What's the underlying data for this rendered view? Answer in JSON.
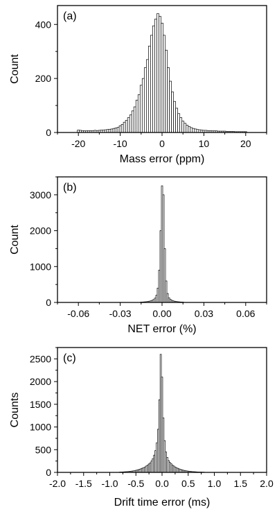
{
  "chart_data": [
    {
      "type": "bar",
      "panel_label": "(a)",
      "xlabel": "Mass error (ppm)",
      "ylabel": "Count",
      "xlim": [
        -25,
        25
      ],
      "ylim": [
        0,
        470
      ],
      "xticks": [
        -20,
        -10,
        0,
        10,
        20
      ],
      "xtick_labels": [
        "-20",
        "-10",
        "0",
        "10",
        "20"
      ],
      "yticks": [
        0,
        200,
        400
      ],
      "ytick_labels": [
        "0",
        "200",
        "400"
      ],
      "bin_width": 0.5,
      "series": [
        {
          "x": [
            -20,
            -19.5,
            -19,
            -18.5,
            -18,
            -17.5,
            -17,
            -16.5,
            -16,
            -15.5,
            -15,
            -14.5,
            -14,
            -13.5,
            -13,
            -12.5,
            -12,
            -11.5,
            -11,
            -10.5,
            -10,
            -9.5,
            -9,
            -8.5,
            -8,
            -7.5,
            -7,
            -6.5,
            -6,
            -5.5,
            -5,
            -4.5,
            -4,
            -3.5,
            -3,
            -2.5,
            -2,
            -1.5,
            -1,
            -0.5,
            0,
            0.5,
            1,
            1.5,
            2,
            2.5,
            3,
            3.5,
            4,
            4.5,
            5,
            5.5,
            6,
            6.5,
            7,
            7.5,
            8,
            8.5,
            9,
            9.5,
            10,
            10.5,
            11,
            11.5,
            12,
            12.5,
            13,
            13.5,
            14,
            14.5,
            15,
            15.5,
            16,
            16.5,
            17,
            17.5,
            18,
            18.5,
            19,
            19.5,
            20
          ],
          "values": [
            9,
            8,
            7,
            6,
            6,
            7,
            6,
            7,
            8,
            7,
            8,
            9,
            9,
            10,
            11,
            12,
            13,
            15,
            17,
            19,
            25,
            30,
            38,
            45,
            55,
            65,
            80,
            95,
            120,
            140,
            175,
            200,
            240,
            270,
            320,
            360,
            395,
            420,
            440,
            430,
            405,
            360,
            305,
            240,
            190,
            150,
            115,
            90,
            70,
            55,
            42,
            34,
            27,
            22,
            18,
            15,
            13,
            11,
            10,
            9,
            8,
            8,
            7,
            7,
            6,
            6,
            6,
            5,
            5,
            5,
            5,
            4,
            4,
            4,
            4,
            3,
            3,
            3,
            3,
            3,
            3
          ]
        }
      ]
    },
    {
      "type": "bar",
      "panel_label": "(b)",
      "xlabel": "NET error (%)",
      "ylabel": "Count",
      "xlim": [
        -0.075,
        0.075
      ],
      "ylim": [
        0,
        3500
      ],
      "xticks": [
        -0.06,
        -0.03,
        0,
        0.03,
        0.06
      ],
      "xtick_labels": [
        "-0.06",
        "-0.03",
        "0.00",
        "0.03",
        "0.06"
      ],
      "yticks": [
        0,
        1000,
        2000,
        3000
      ],
      "ytick_labels": [
        "0",
        "1000",
        "2000",
        "3000"
      ],
      "bin_width": 0.001,
      "series": [
        {
          "x": [
            -0.015,
            -0.014,
            -0.013,
            -0.012,
            -0.011,
            -0.01,
            -0.009,
            -0.008,
            -0.007,
            -0.006,
            -0.005,
            -0.004,
            -0.003,
            -0.002,
            -0.001,
            0,
            0.001,
            0.002,
            0.003,
            0.004,
            0.005,
            0.006,
            0.007,
            0.008,
            0.009,
            0.01,
            0.011,
            0.012,
            0.013,
            0.014,
            0.015
          ],
          "values": [
            10,
            12,
            15,
            18,
            22,
            28,
            35,
            45,
            60,
            80,
            120,
            200,
            400,
            900,
            2000,
            3250,
            3000,
            1500,
            600,
            250,
            130,
            85,
            60,
            45,
            35,
            28,
            22,
            18,
            14,
            12,
            10
          ]
        }
      ]
    },
    {
      "type": "bar",
      "panel_label": "(c)",
      "xlabel": "Drift time error (ms)",
      "ylabel": "Counts",
      "xlim": [
        -2,
        2
      ],
      "ylim": [
        0,
        2750
      ],
      "xticks": [
        -2,
        -1.5,
        -1,
        -0.5,
        0,
        0.5,
        1,
        1.5,
        2
      ],
      "xtick_labels": [
        "-2.0",
        "-1.5",
        "-1.0",
        "-0.5",
        "0.0",
        "0.5",
        "1.0",
        "1.5",
        "2.0"
      ],
      "yticks": [
        0,
        500,
        1000,
        1500,
        2000,
        2500
      ],
      "ytick_labels": [
        "0",
        "500",
        "1000",
        "1500",
        "2000",
        "2500"
      ],
      "bin_width": 0.025,
      "series": [
        {
          "x": [
            -0.8,
            -0.775,
            -0.75,
            -0.725,
            -0.7,
            -0.675,
            -0.65,
            -0.625,
            -0.6,
            -0.575,
            -0.55,
            -0.525,
            -0.5,
            -0.475,
            -0.45,
            -0.425,
            -0.4,
            -0.375,
            -0.35,
            -0.325,
            -0.3,
            -0.275,
            -0.25,
            -0.225,
            -0.2,
            -0.175,
            -0.15,
            -0.125,
            -0.1,
            -0.075,
            -0.05,
            -0.025,
            0,
            0.025,
            0.05,
            0.075,
            0.1,
            0.125,
            0.15,
            0.175,
            0.2,
            0.225,
            0.25,
            0.275,
            0.3,
            0.325,
            0.35,
            0.375,
            0.4,
            0.425,
            0.45,
            0.475,
            0.5,
            0.525,
            0.55,
            0.575,
            0.6,
            0.625,
            0.65,
            0.675,
            0.7,
            0.725,
            0.75,
            0.775,
            0.8
          ],
          "values": [
            8,
            9,
            10,
            12,
            14,
            16,
            18,
            21,
            25,
            29,
            33,
            38,
            45,
            52,
            60,
            70,
            80,
            92,
            105,
            120,
            140,
            160,
            185,
            210,
            250,
            300,
            380,
            480,
            650,
            950,
            1600,
            2600,
            2100,
            1200,
            700,
            450,
            330,
            260,
            220,
            190,
            160,
            140,
            120,
            105,
            90,
            78,
            68,
            58,
            50,
            43,
            37,
            32,
            28,
            24,
            21,
            18,
            16,
            14,
            12,
            10,
            9,
            8,
            7,
            6,
            5
          ]
        }
      ]
    }
  ]
}
